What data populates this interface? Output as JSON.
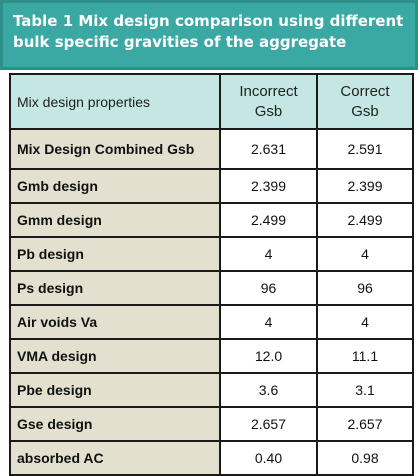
{
  "caption": {
    "line1": "Table 1 Mix design comparison using different",
    "line2": "bulk specific gravities of the aggregate"
  },
  "header": {
    "col1": "Mix design properties",
    "col2": "Incorrect\nGsb",
    "col3": "Correct\nGsb"
  },
  "rows": [
    {
      "label": "Mix Design Combined Gsb",
      "incorrect": "2.631",
      "correct": "2.591"
    },
    {
      "label": "Gmb design",
      "incorrect": "2.399",
      "correct": "2.399"
    },
    {
      "label": "Gmm design",
      "incorrect": "2.499",
      "correct": "2.499"
    },
    {
      "label": "Pb design",
      "incorrect": "4",
      "correct": "4"
    },
    {
      "label": "Ps design",
      "incorrect": "96",
      "correct": "96"
    },
    {
      "label": "Air voids Va",
      "incorrect": "4",
      "correct": "4"
    },
    {
      "label": "VMA design",
      "incorrect": "12.0",
      "correct": "11.1"
    },
    {
      "label": "Pbe design",
      "incorrect": "3.6",
      "correct": "3.1"
    },
    {
      "label": "Gse design",
      "incorrect": "2.657",
      "correct": "2.657"
    },
    {
      "label": "absorbed AC",
      "incorrect": "0.40",
      "correct": "0.98"
    }
  ],
  "colors": {
    "caption_bg": "#3aa8a3",
    "header_bg": "#c5e7e3",
    "label_bg": "#e3e0cf"
  }
}
